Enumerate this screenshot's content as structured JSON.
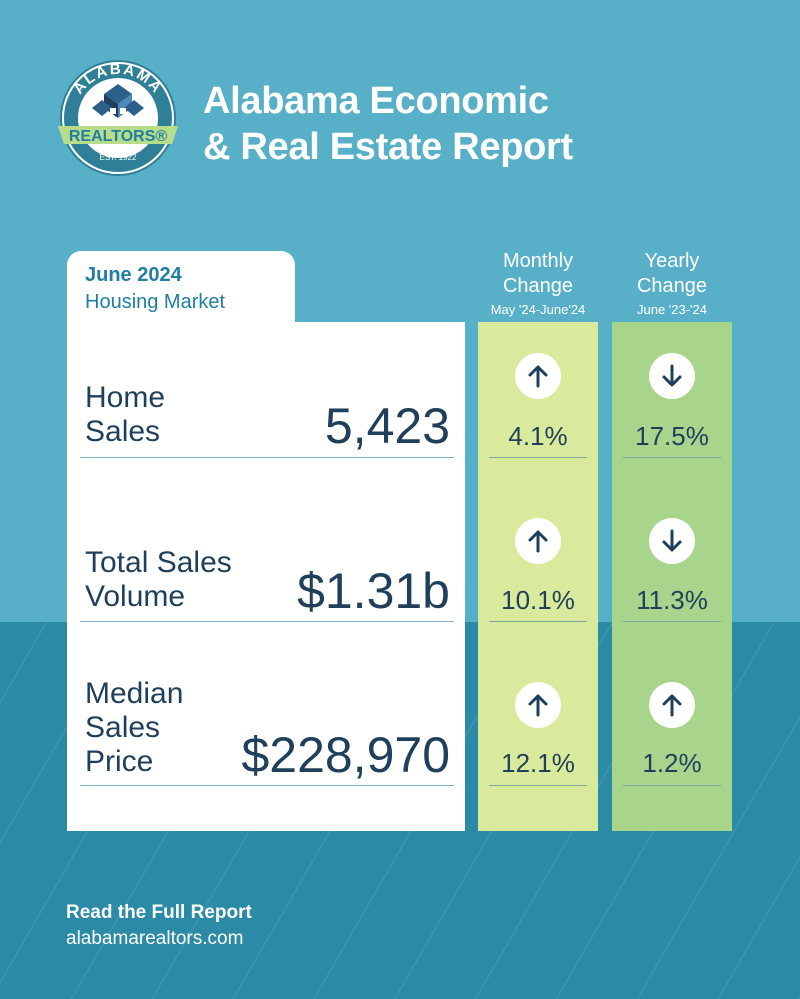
{
  "logo": {
    "top_text": "ALABAMA",
    "banner_text": "REALTORS®",
    "est_text": "EST. 1922"
  },
  "header": {
    "title_line1": "Alabama Economic",
    "title_line2": "& Real Estate Report"
  },
  "period": {
    "title": "June 2024",
    "subtitle": "Housing Market"
  },
  "columns": {
    "monthly": {
      "line1": "Monthly",
      "line2": "Change",
      "range": "May '24-June'24"
    },
    "yearly": {
      "line1": "Yearly",
      "line2": "Change",
      "range": "June '23-'24"
    }
  },
  "rows": [
    {
      "label_line1": "Home",
      "label_line2": "Sales",
      "label_line3": "",
      "value": "5,423",
      "monthly": {
        "pct": "4.1%",
        "direction": "up"
      },
      "yearly": {
        "pct": "17.5%",
        "direction": "down"
      }
    },
    {
      "label_line1": "Total Sales",
      "label_line2": "Volume",
      "label_line3": "",
      "value": "$1.31b",
      "monthly": {
        "pct": "10.1%",
        "direction": "up"
      },
      "yearly": {
        "pct": "11.3%",
        "direction": "down"
      }
    },
    {
      "label_line1": "Median",
      "label_line2": "Sales",
      "label_line3": "Price",
      "value": "$228,970",
      "monthly": {
        "pct": "12.1%",
        "direction": "up"
      },
      "yearly": {
        "pct": "1.2%",
        "direction": "up"
      }
    }
  ],
  "footer": {
    "cta": "Read the Full Report",
    "url": "alabamarealtors.com"
  },
  "colors": {
    "sky": "#58b0c8",
    "deep_teal": "#2b8aa6",
    "monthly_column": "#daea9c",
    "yearly_column": "#a8d48c",
    "navy_text": "#1f3f5b",
    "accent_teal": "#1f7ea1"
  }
}
